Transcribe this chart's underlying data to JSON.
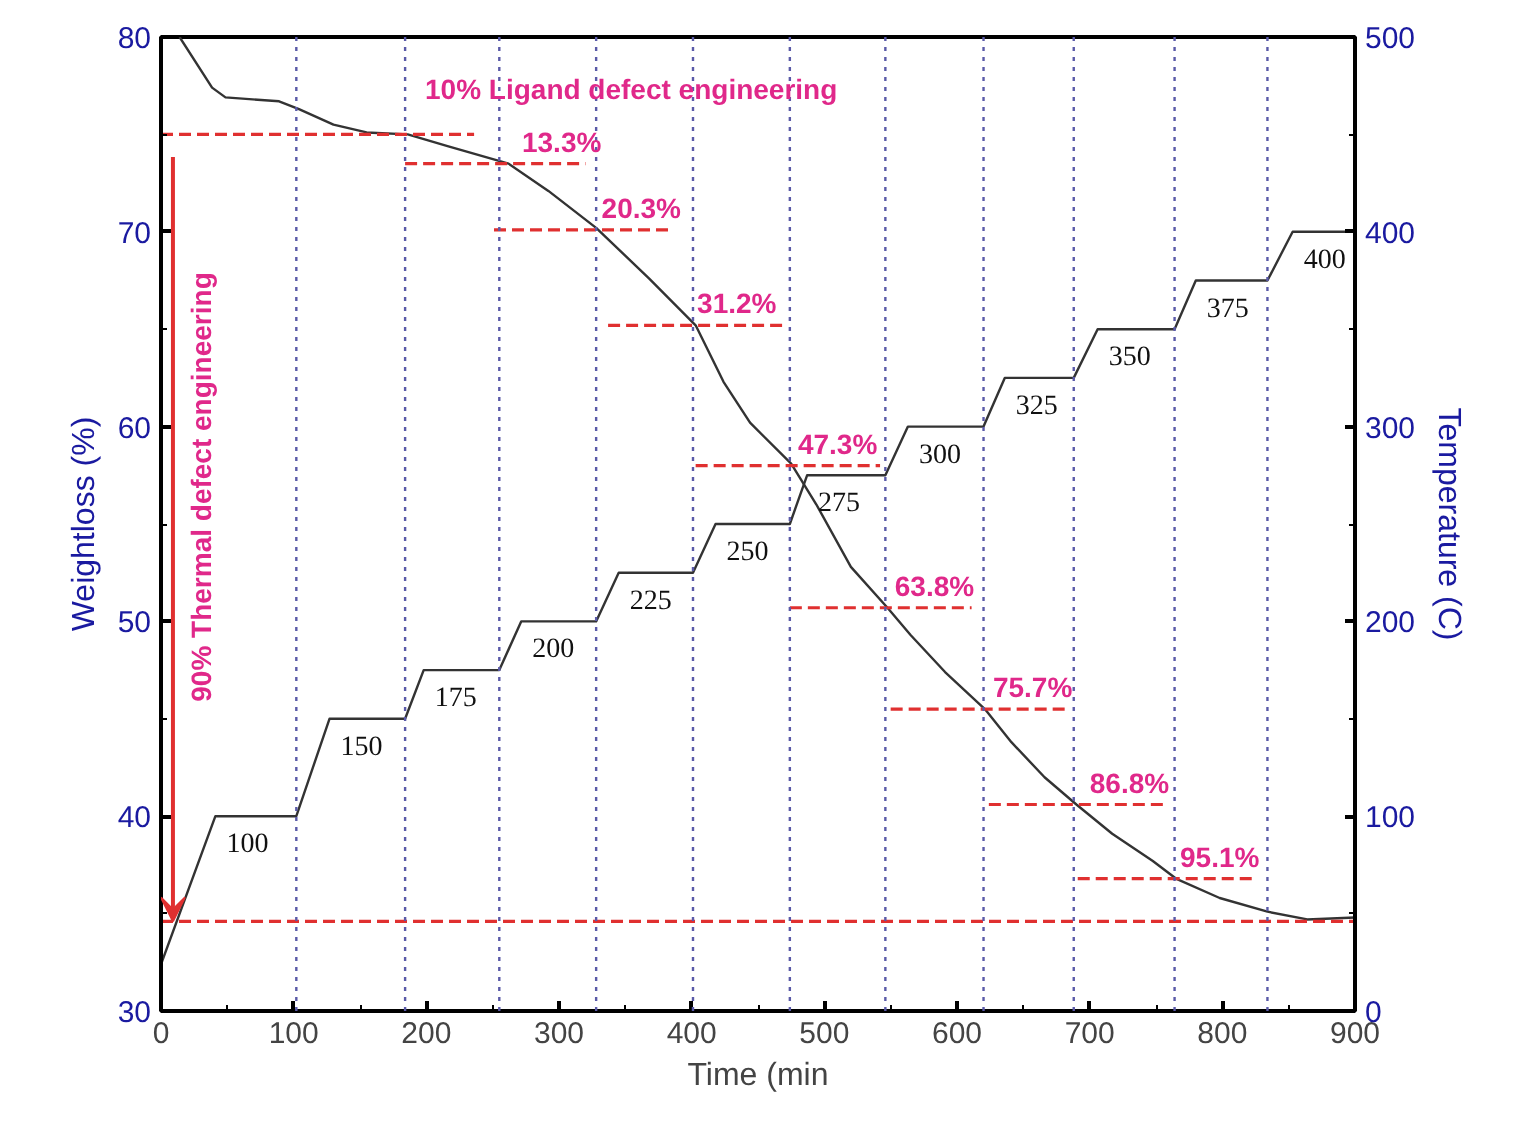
{
  "chart_data": {
    "type": "line",
    "xlabel": "Time (min",
    "ylabel": "Weightloss (%)",
    "y2label": "Temperature (C)",
    "xlim": [
      0,
      900
    ],
    "xticks": [
      0,
      100,
      200,
      300,
      400,
      500,
      600,
      700,
      800,
      900
    ],
    "ylim": [
      30,
      80
    ],
    "yticks": [
      30,
      40,
      50,
      60,
      70,
      80
    ],
    "y2lim": [
      0,
      500
    ],
    "y2ticks": [
      0,
      100,
      200,
      300,
      400,
      500
    ],
    "grid": false,
    "line_style": "solid",
    "marker": "none",
    "series": [
      {
        "color": "#333333",
        "x": [
          14,
          38.5,
          48.6,
          89,
          104,
          130,
          155,
          186,
          216,
          262,
          292,
          328,
          368,
          403,
          424,
          444,
          475,
          494,
          520,
          547.6,
          565,
          591,
          621,
          641,
          666,
          690,
          717,
          747.6,
          765,
          798,
          834,
          864,
          900
        ],
        "values": [
          80,
          77.4,
          76.9,
          76.7,
          76.3,
          75.5,
          75.1,
          75.0,
          74.4,
          73.5,
          72.1,
          70.2,
          67.6,
          65.2,
          62.3,
          60.2,
          58.1,
          56.0,
          52.8,
          50.7,
          49.3,
          47.4,
          45.5,
          43.8,
          42.0,
          40.6,
          39.1,
          37.7,
          36.8,
          35.8,
          35.1,
          34.7,
          34.8
        ]
      },
      {
        "color": "#333333",
        "axis": "y2",
        "x": [
          0,
          41,
          102,
          127,
          184,
          198,
          255,
          271.5,
          328,
          345,
          401,
          418,
          474,
          487,
          546,
          563,
          620,
          636,
          688,
          706,
          764,
          780,
          834,
          853,
          900
        ],
        "values": [
          24,
          100,
          100,
          150,
          150,
          175,
          175,
          200,
          200,
          225,
          225,
          250,
          250,
          275,
          275,
          300,
          300,
          325,
          325,
          350,
          350,
          375,
          375,
          400,
          400
        ],
        "value_labels": [
          null,
          "100",
          null,
          "150",
          null,
          "175",
          null,
          "200",
          null,
          "225",
          null,
          "250",
          null,
          "275",
          null,
          "300",
          null,
          "325",
          null,
          "350",
          null,
          "375",
          null,
          "400",
          null
        ]
      },
      {
        "color": "#e03030",
        "line_style": "dashed",
        "x": [
          0,
          236
        ],
        "values": [
          75,
          75
        ]
      },
      {
        "color": "#e03030",
        "line_style": "dashed",
        "x": [
          184,
          320
        ],
        "values": [
          73.5,
          73.5
        ]
      },
      {
        "color": "#e03030",
        "line_style": "dashed",
        "x": [
          251,
          385
        ],
        "values": [
          70.1,
          70.1
        ]
      },
      {
        "color": "#e03030",
        "line_style": "dashed",
        "x": [
          337,
          472
        ],
        "values": [
          65.2,
          65.2
        ]
      },
      {
        "color": "#e03030",
        "line_style": "dashed",
        "x": [
          403,
          542
        ],
        "values": [
          58.0,
          58.0
        ]
      },
      {
        "color": "#e03030",
        "line_style": "dashed",
        "x": [
          474,
          611
        ],
        "values": [
          50.7,
          50.7
        ]
      },
      {
        "color": "#e03030",
        "line_style": "dashed",
        "x": [
          550,
          684
        ],
        "values": [
          45.5,
          45.5
        ]
      },
      {
        "color": "#e03030",
        "line_style": "dashed",
        "x": [
          624,
          758
        ],
        "values": [
          40.6,
          40.6
        ]
      },
      {
        "color": "#e03030",
        "line_style": "dashed",
        "x": [
          691,
          824
        ],
        "values": [
          36.8,
          36.8
        ]
      },
      {
        "color": "#e03030",
        "line_style": "dashed",
        "x": [
          0,
          900
        ],
        "values": [
          34.6,
          34.6
        ]
      }
    ],
    "ref_lines": [
      {
        "axis": "x",
        "value": 102,
        "color": "#5a5aa8",
        "line_style": "dotted"
      },
      {
        "axis": "x",
        "value": 184,
        "color": "#5a5aa8",
        "line_style": "dotted"
      },
      {
        "axis": "x",
        "value": 255,
        "color": "#5a5aa8",
        "line_style": "dotted"
      },
      {
        "axis": "x",
        "value": 328,
        "color": "#5a5aa8",
        "line_style": "dotted"
      },
      {
        "axis": "x",
        "value": 401,
        "color": "#5a5aa8",
        "line_style": "dotted"
      },
      {
        "axis": "x",
        "value": 474,
        "color": "#5a5aa8",
        "line_style": "dotted"
      },
      {
        "axis": "x",
        "value": 546,
        "color": "#5a5aa8",
        "line_style": "dotted"
      },
      {
        "axis": "x",
        "value": 620,
        "color": "#5a5aa8",
        "line_style": "dotted"
      },
      {
        "axis": "x",
        "value": 688,
        "color": "#5a5aa8",
        "line_style": "dotted"
      },
      {
        "axis": "x",
        "value": 764,
        "color": "#5a5aa8",
        "line_style": "dotted"
      },
      {
        "axis": "x",
        "value": 834,
        "color": "#5a5aa8",
        "line_style": "dotted"
      }
    ],
    "annotations": [
      "10% Ligand defect engineering",
      "90% Thermal defect engineering",
      {
        "text": "13.3%",
        "x": 302,
        "y": 73.5
      },
      {
        "text": "20.3%",
        "x": 362,
        "y": 70.1
      },
      {
        "text": "31.2%",
        "x": 434,
        "y": 65.2
      },
      {
        "text": "47.3%",
        "x": 510,
        "y": 58.0
      },
      {
        "text": "63.8%",
        "x": 583,
        "y": 50.7
      },
      {
        "text": "75.7%",
        "x": 657,
        "y": 45.5
      },
      {
        "text": "86.8%",
        "x": 730,
        "y": 40.6
      },
      {
        "text": "95.1%",
        "x": 798,
        "y": 36.8
      }
    ]
  }
}
